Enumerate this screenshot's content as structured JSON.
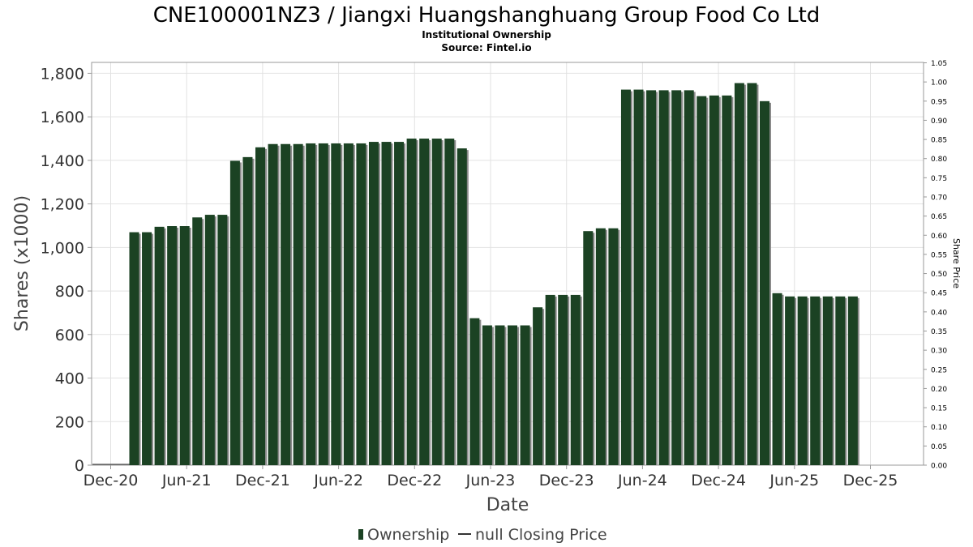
{
  "chart_data": {
    "type": "bar",
    "title": "CNE100001NZ3 / Jiangxi Huangshanghuang Group Food Co Ltd",
    "subtitle": "Institutional Ownership",
    "source": "Source: Fintel.io",
    "xlabel": "Date",
    "ylabel": "Shares (x1000)",
    "y2label": "Share Price",
    "ylim": [
      0,
      1850
    ],
    "y2lim": [
      0,
      1.05
    ],
    "yticks": [
      {
        "value": 0,
        "label": "0"
      },
      {
        "value": 200,
        "label": "200"
      },
      {
        "value": 400,
        "label": "400"
      },
      {
        "value": 600,
        "label": "600"
      },
      {
        "value": 800,
        "label": "800"
      },
      {
        "value": 1000,
        "label": "1,000"
      },
      {
        "value": 1200,
        "label": "1,200"
      },
      {
        "value": 1400,
        "label": "1,400"
      },
      {
        "value": 1600,
        "label": "1,600"
      },
      {
        "value": 1800,
        "label": "1,800"
      }
    ],
    "y2ticks": [
      "0.00",
      "0.05",
      "0.10",
      "0.15",
      "0.20",
      "0.25",
      "0.30",
      "0.35",
      "0.40",
      "0.45",
      "0.50",
      "0.55",
      "0.60",
      "0.65",
      "0.70",
      "0.75",
      "0.80",
      "0.85",
      "0.90",
      "0.95",
      "1.00",
      "1.05"
    ],
    "xticks": [
      "Dec-20",
      "Jun-21",
      "Dec-21",
      "Jun-22",
      "Dec-22",
      "Jun-23",
      "Dec-23",
      "Jun-24",
      "Dec-24",
      "Jun-25",
      "Dec-25"
    ],
    "grid": true,
    "legend_position": "bottom",
    "series": [
      {
        "name": "Ownership",
        "color": "#1b4223",
        "values": [
          1070,
          1070,
          1095,
          1098,
          1098,
          1138,
          1150,
          1150,
          1398,
          1415,
          1460,
          1475,
          1475,
          1475,
          1478,
          1478,
          1478,
          1478,
          1478,
          1485,
          1485,
          1485,
          1500,
          1500,
          1500,
          1500,
          1455,
          675,
          642,
          642,
          642,
          642,
          725,
          782,
          782,
          782,
          1075,
          1088,
          1088,
          1725,
          1725,
          1722,
          1722,
          1722,
          1722,
          1695,
          1698,
          1698,
          1755,
          1755,
          1672,
          790,
          775,
          775,
          775,
          775,
          775,
          775
        ]
      },
      {
        "name": "null Closing Price",
        "color": "#333333",
        "values": []
      }
    ]
  }
}
